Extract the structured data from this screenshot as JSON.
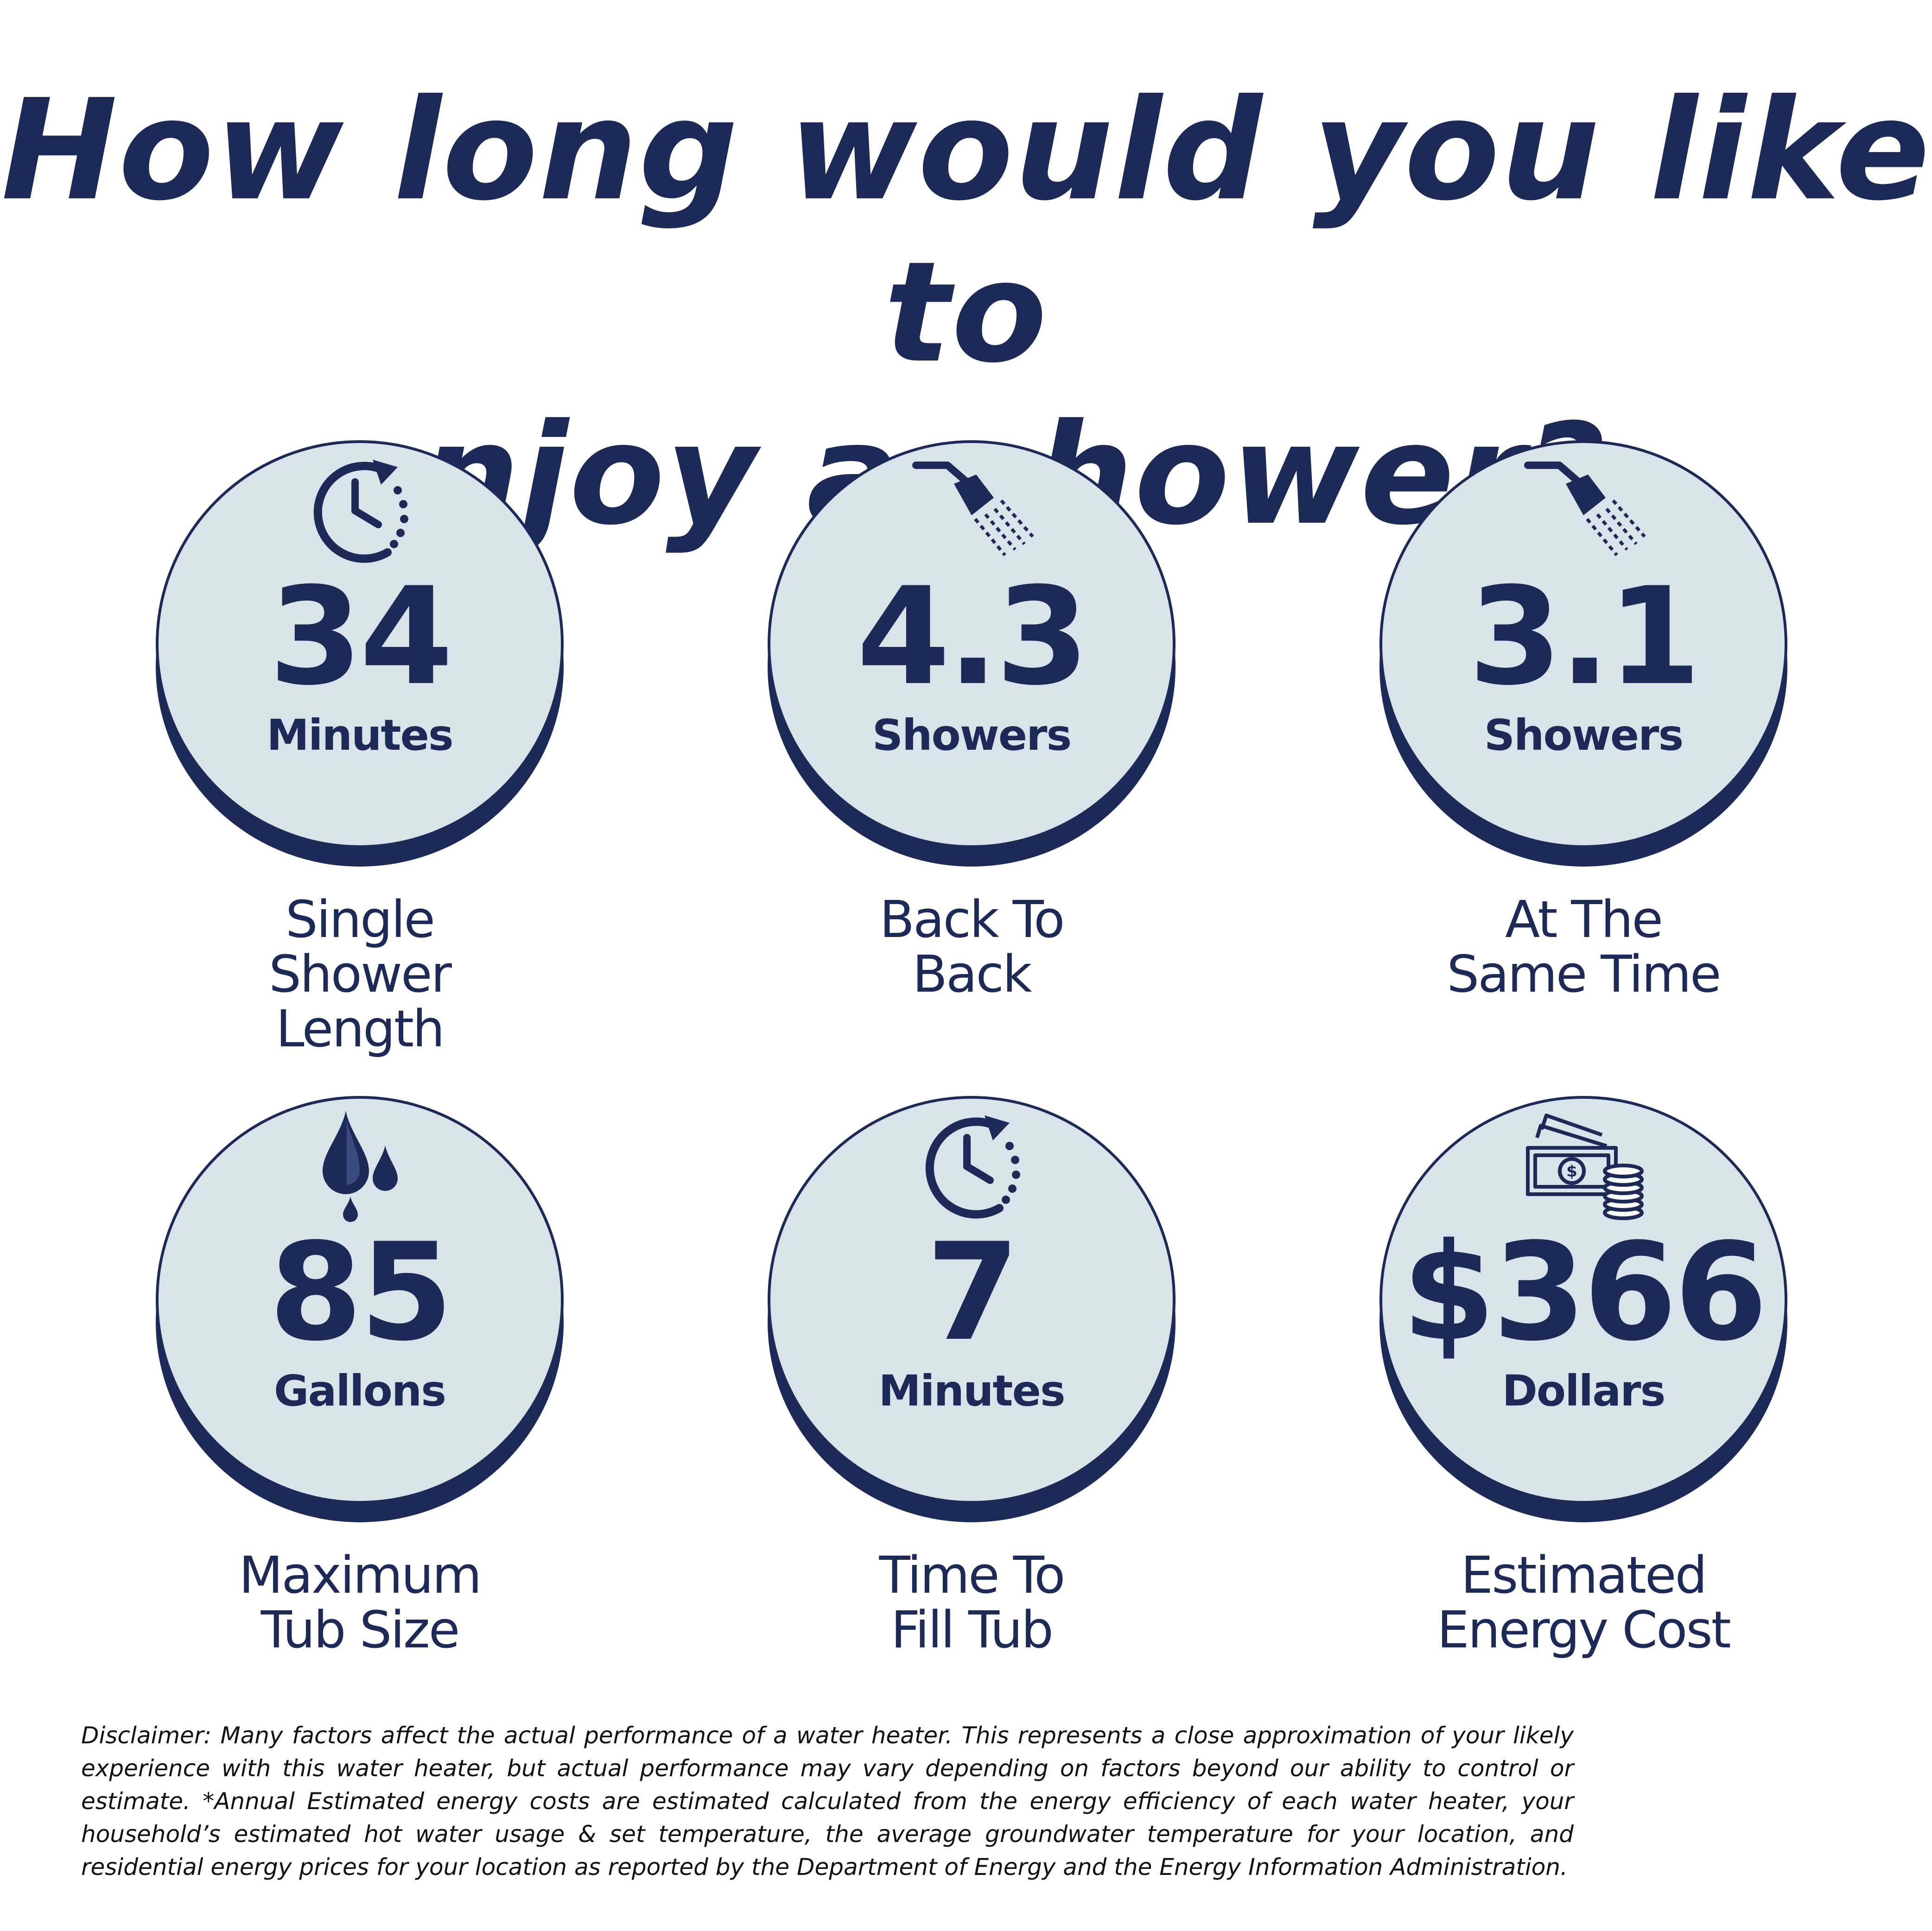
{
  "headline": {
    "line1": "How long would you like to",
    "line2": "enjoy a shower?"
  },
  "colors": {
    "navy": "#1d2957",
    "circle_fill": "#d8e4ea",
    "background": "#ffffff"
  },
  "stats": [
    {
      "icon": "clock-icon",
      "value": "34",
      "unit": "Minutes",
      "caption": [
        "Single",
        "Shower",
        "Length"
      ]
    },
    {
      "icon": "shower-head-icon",
      "value": "4.3",
      "unit": "Showers",
      "caption": [
        "Back To",
        "Back"
      ]
    },
    {
      "icon": "shower-head-icon",
      "value": "3.1",
      "unit": "Showers",
      "caption": [
        "At The",
        "Same Time"
      ]
    },
    {
      "icon": "water-drops-icon",
      "value": "85",
      "unit": "Gallons",
      "caption": [
        "Maximum",
        "Tub Size"
      ]
    },
    {
      "icon": "clock-icon",
      "value": "7",
      "unit": "Minutes",
      "caption": [
        "Time To",
        "Fill Tub"
      ]
    },
    {
      "icon": "money-icon",
      "value": "$366",
      "unit": "Dollars",
      "caption": [
        "Estimated",
        "Energy Cost"
      ]
    }
  ],
  "disclaimer": "Disclaimer: Many factors affect the actual performance of a water heater. This represents a close approximation of your likely experience with this water heater, but actual performance may vary depending on factors beyond our ability to control or estimate. *Annual Estimated energy costs are estimated calculated from the energy efficiency of each water heater, your household’s estimated hot water usage & set temperature, the average groundwater temperature for your location, and residential energy prices for your location as reported by the Department of Energy and the Energy Information Administration."
}
